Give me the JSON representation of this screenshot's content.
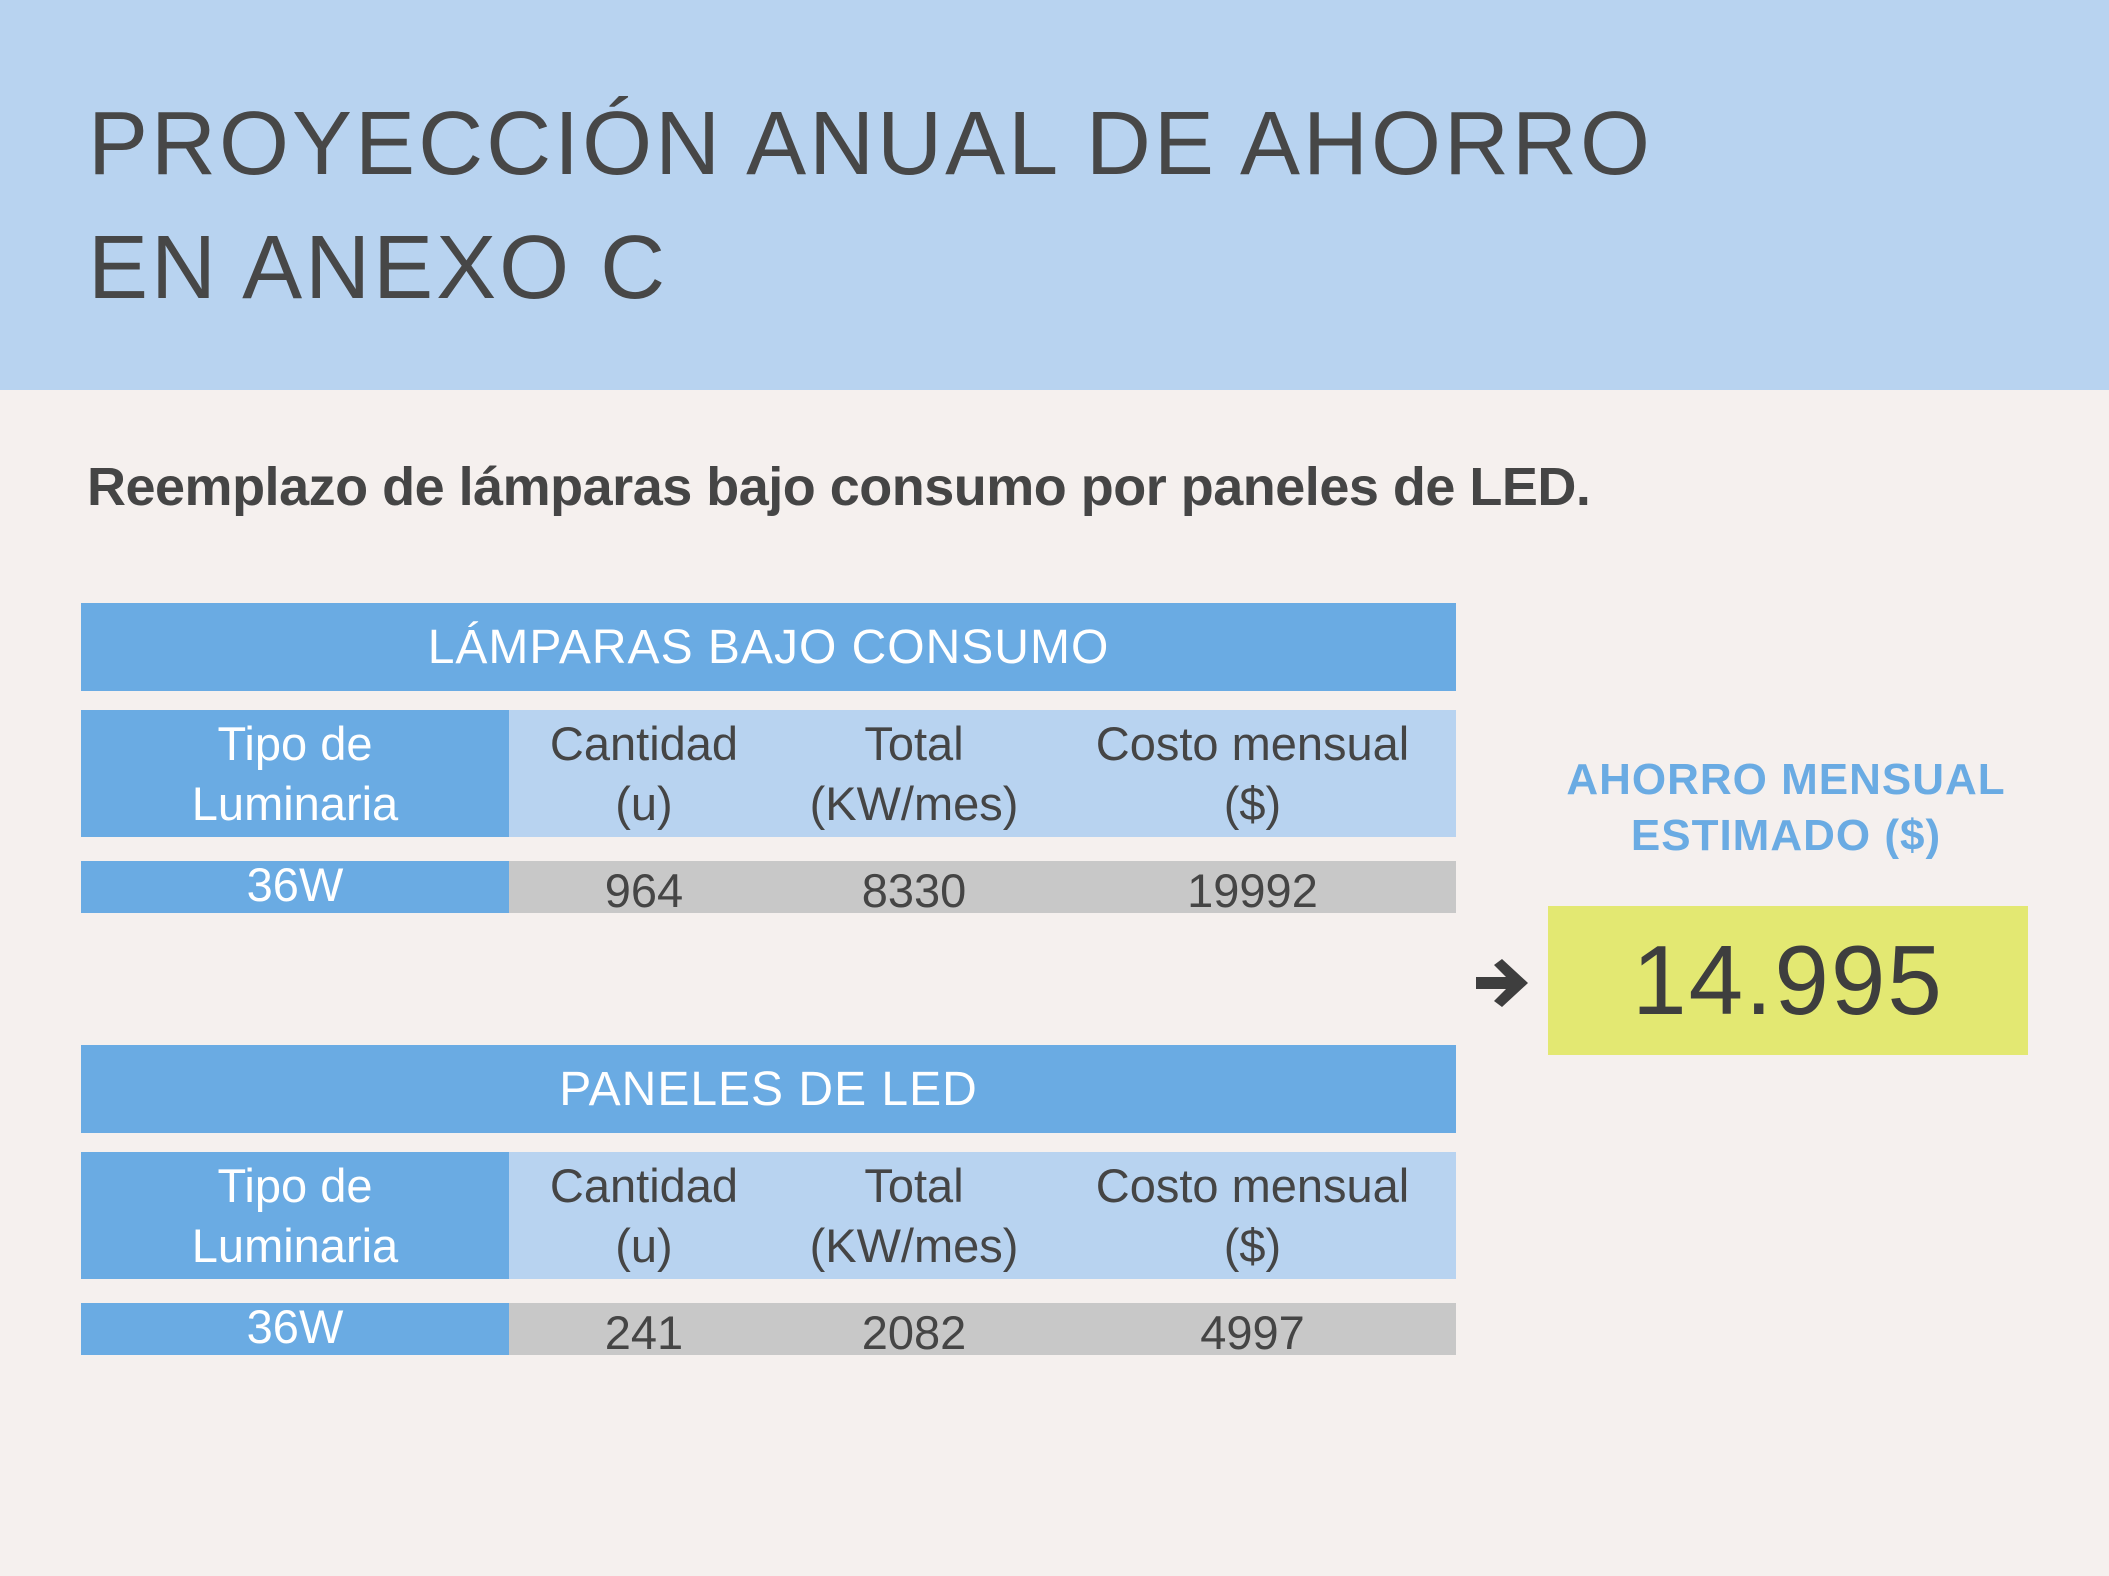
{
  "header": {
    "title_line1": "PROYECCIÓN ANUAL DE AHORRO",
    "title_line2": "EN ANEXO C"
  },
  "subtitle": "Reemplazo de lámparas bajo consumo por paneles de LED.",
  "columns": {
    "tipo_line1": "Tipo de",
    "tipo_line2": "Luminaria",
    "cantidad_line1": "Cantidad",
    "cantidad_line2": "(u)",
    "total_line1": "Total",
    "total_line2": "(KW/mes)",
    "costo_line1": "Costo mensual",
    "costo_line2": "($)"
  },
  "tables": [
    {
      "heading": "LÁMPARAS BAJO CONSUMO",
      "row": {
        "tipo": "36W",
        "cantidad": "964",
        "total": "8330",
        "costo": "19992"
      }
    },
    {
      "heading": "PANELES DE LED",
      "row": {
        "tipo": "36W",
        "cantidad": "241",
        "total": "2082",
        "costo": "4997"
      }
    }
  ],
  "saving": {
    "label_line1": "AHORRO MENSUAL",
    "label_line2": "ESTIMADO ($)",
    "value": "14.995",
    "arrow_icon": "arrow-right-icon"
  },
  "colors": {
    "header_bg": "#b8d3f0",
    "accent_blue": "#6aabe3",
    "light_blue": "#b8d3f0",
    "data_gray": "#c8c8c8",
    "highlight_yellow": "#e3e872",
    "page_bg": "#f5f0ee"
  }
}
